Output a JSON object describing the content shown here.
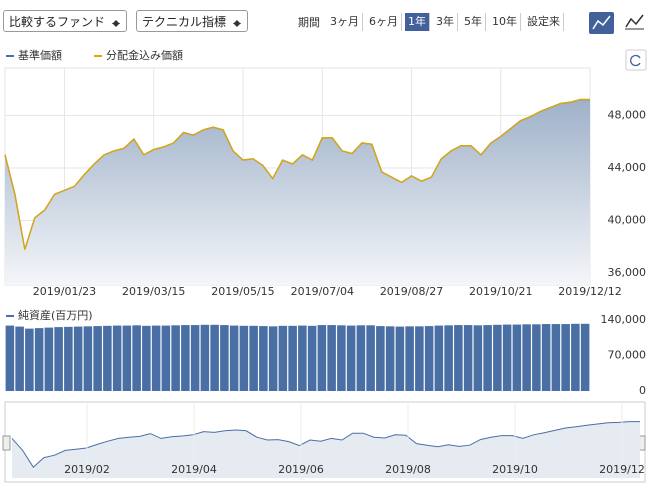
{
  "toolbar": {
    "selects": [
      "比較するファンド",
      "テクニカル指標"
    ],
    "period_label": "期間",
    "periods": [
      "3ヶ月",
      "6ヶ月",
      "1年",
      "3年",
      "5年",
      "10年",
      "設定来"
    ],
    "selected": 2
  },
  "chart_data": [
    {
      "type": "area",
      "series": [
        {
          "name": "基準価額",
          "color": "#4a6fa5",
          "values": [
            45000,
            42000,
            37800,
            40200,
            40800,
            42000,
            42300,
            42600,
            43500,
            44300,
            45000,
            45300,
            45500,
            46200,
            45000,
            45400,
            45600,
            45900,
            46700,
            46500,
            46900,
            47100,
            46900,
            45300,
            44600,
            44700,
            44200,
            43200,
            44600,
            44300,
            45000,
            44600,
            46300,
            46300,
            45300,
            45100,
            45900,
            45800,
            43700,
            43300,
            42900,
            43400,
            43000,
            43300,
            44700,
            45300,
            45700,
            45700,
            45000,
            45900,
            46400,
            47000,
            47600,
            47900,
            48300,
            48600,
            48900,
            49000,
            49200,
            49200
          ]
        },
        {
          "name": "分配金込み価額",
          "color": "#e0a800",
          "values": [
            45000,
            42000,
            37800,
            40200,
            40800,
            42000,
            42300,
            42600,
            43500,
            44300,
            45000,
            45300,
            45500,
            46200,
            45000,
            45400,
            45600,
            45900,
            46700,
            46500,
            46900,
            47100,
            46900,
            45300,
            44600,
            44700,
            44200,
            43200,
            44600,
            44300,
            45000,
            44600,
            46300,
            46300,
            45300,
            45100,
            45900,
            45800,
            43700,
            43300,
            42900,
            43400,
            43000,
            43300,
            44700,
            45300,
            45700,
            45700,
            45000,
            45900,
            46400,
            47000,
            47600,
            47900,
            48300,
            48600,
            48900,
            49000,
            49200,
            49200
          ]
        }
      ],
      "xticks": [
        {
          "value": 6,
          "label": "2019/01/23"
        },
        {
          "value": 15,
          "label": "2019/03/15"
        },
        {
          "value": 24,
          "label": "2019/05/15"
        },
        {
          "value": 32,
          "label": "2019/07/04"
        },
        {
          "value": 41,
          "label": "2019/08/27"
        },
        {
          "value": 50,
          "label": "2019/10/21"
        },
        {
          "value": 59,
          "label": "2019/12/12"
        }
      ],
      "xlim": [
        0,
        59
      ],
      "ylim": [
        35100,
        51600
      ],
      "yticks": [
        {
          "value": 36000,
          "label": "36,000"
        },
        {
          "value": 40000,
          "label": "40,000"
        },
        {
          "value": 44000,
          "label": "44,000"
        },
        {
          "value": 48000,
          "label": "48,000"
        }
      ],
      "grid": true
    },
    {
      "type": "bar",
      "series": [
        {
          "name": "純資産(百万円)",
          "color": "#4a6fa5",
          "values": [
            129000,
            127000,
            123000,
            124000,
            125000,
            126000,
            126500,
            127000,
            127500,
            128000,
            128500,
            129000,
            129000,
            129500,
            128500,
            129000,
            129000,
            129500,
            130000,
            130000,
            130500,
            130500,
            130000,
            129000,
            128500,
            128500,
            128000,
            127500,
            128500,
            128500,
            129000,
            128500,
            130000,
            130000,
            129500,
            129000,
            129500,
            129500,
            128000,
            127500,
            127000,
            127500,
            127500,
            128000,
            129000,
            129500,
            130000,
            130000,
            129500,
            130000,
            130500,
            131000,
            131000,
            131500,
            131500,
            132000,
            132000,
            132000,
            132500,
            132500
          ]
        }
      ],
      "ylim": [
        0,
        140000
      ],
      "yticks": [
        0,
        {
          "value": 70000,
          "label": "70,000"
        },
        {
          "value": 140000,
          "label": "140,000"
        }
      ]
    }
  ],
  "navigator": {
    "labels": [
      "2019/02",
      "2019/04",
      "2019/06",
      "2019/08",
      "2019/10",
      "2019/12"
    ]
  }
}
